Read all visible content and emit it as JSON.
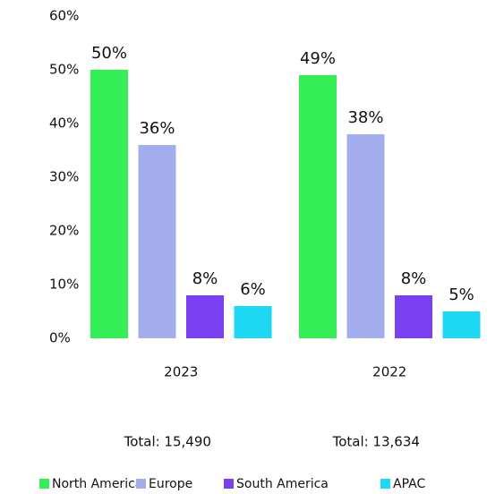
{
  "chart_data": {
    "type": "bar",
    "categories": [
      "2023",
      "2022"
    ],
    "series": [
      {
        "name": "North America",
        "color": "#33ee55",
        "values": [
          50,
          49
        ],
        "value_labels": [
          "50%",
          "49%"
        ]
      },
      {
        "name": "Europe",
        "color": "#a3acec",
        "values": [
          36,
          38
        ],
        "value_labels": [
          "36%",
          "38%"
        ]
      },
      {
        "name": "South America",
        "color": "#7b3ff2",
        "values": [
          8,
          8
        ],
        "value_labels": [
          "8%",
          "8%"
        ]
      },
      {
        "name": "APAC",
        "color": "#1ed7f2",
        "values": [
          6,
          5
        ],
        "value_labels": [
          "6%",
          "5%"
        ]
      }
    ],
    "annotations": [
      "Total: 15,490",
      "Total: 13,634"
    ],
    "ylim": [
      0,
      60
    ],
    "yticks": [
      {
        "value": 0,
        "label": "0%"
      },
      {
        "value": 10,
        "label": "10%"
      },
      {
        "value": 20,
        "label": "20%"
      },
      {
        "value": 30,
        "label": "30%"
      },
      {
        "value": 40,
        "label": "40%"
      },
      {
        "value": 50,
        "label": "50%"
      },
      {
        "value": 60,
        "label": "60%"
      }
    ],
    "grid": false,
    "legend": "bottom"
  }
}
